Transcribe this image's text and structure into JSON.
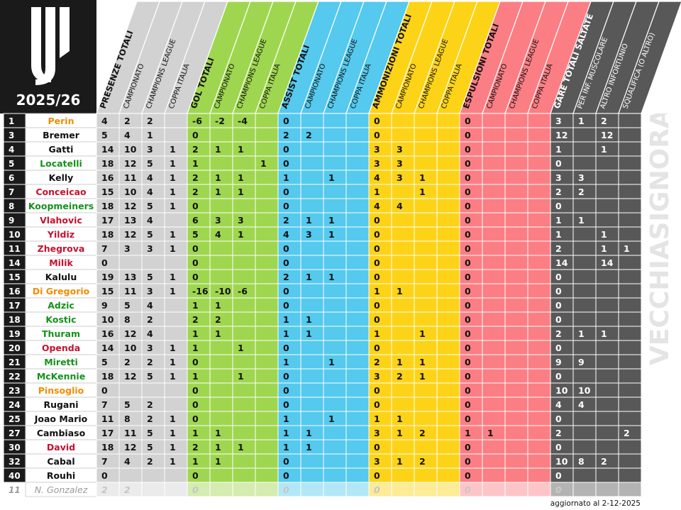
{
  "season": "2025/26",
  "watermark": "VECCHIASIGNORA.COM",
  "updated_note": "aggiornato al 2-12-2025",
  "colors": {
    "presenze": "#d2d2d2",
    "gol": "#9fd64f",
    "assist": "#55c9ee",
    "ammonizioni": "#fdd317",
    "espulsioni": "#fb7e84",
    "gare": "#585858",
    "header_black": "#1a1a1a",
    "name_black": "#111111",
    "name_orange": "#f28c00",
    "name_green": "#15911b",
    "name_red": "#c8102e",
    "name_grey": "#9a9a9a"
  },
  "columns": [
    {
      "key": "pres_tot",
      "label": "PRESENZE TOTALI",
      "group": "presenze",
      "main": true
    },
    {
      "key": "pres_camp",
      "label": "CAMPIONATO",
      "group": "presenze",
      "main": false
    },
    {
      "key": "pres_cl",
      "label": "CHAMPIONS LEAGUE",
      "group": "presenze",
      "main": false
    },
    {
      "key": "pres_ci",
      "label": "COPPA ITALIA",
      "group": "presenze",
      "main": false
    },
    {
      "key": "gol_tot",
      "label": "GOL TOTALI",
      "group": "gol",
      "main": true
    },
    {
      "key": "gol_camp",
      "label": "CAMPIONATO",
      "group": "gol",
      "main": false
    },
    {
      "key": "gol_cl",
      "label": "CHAMPIONS LEAGUE",
      "group": "gol",
      "main": false
    },
    {
      "key": "gol_ci",
      "label": "COPPA ITALIA",
      "group": "gol",
      "main": false
    },
    {
      "key": "ast_tot",
      "label": "ASSIST TOTALI",
      "group": "assist",
      "main": true
    },
    {
      "key": "ast_camp",
      "label": "CAMPIONATO",
      "group": "assist",
      "main": false
    },
    {
      "key": "ast_cl",
      "label": "CHAMPIONS LEAGUE",
      "group": "assist",
      "main": false
    },
    {
      "key": "ast_ci",
      "label": "COPPA ITALIA",
      "group": "assist",
      "main": false
    },
    {
      "key": "amm_tot",
      "label": "AMMONIZIONI TOTALI",
      "group": "ammonizioni",
      "main": true
    },
    {
      "key": "amm_camp",
      "label": "CAMPIONATO",
      "group": "ammonizioni",
      "main": false
    },
    {
      "key": "amm_cl",
      "label": "CHAMPIONS LEAGUE",
      "group": "ammonizioni",
      "main": false
    },
    {
      "key": "amm_ci",
      "label": "COPPA ITALIA",
      "group": "ammonizioni",
      "main": false
    },
    {
      "key": "esp_tot",
      "label": "ESPULSIONI TOTALI",
      "group": "espulsioni",
      "main": true
    },
    {
      "key": "esp_camp",
      "label": "CAMPIONATO",
      "group": "espulsioni",
      "main": false
    },
    {
      "key": "esp_cl",
      "label": "CHAMPIONS LEAGUE",
      "group": "espulsioni",
      "main": false
    },
    {
      "key": "esp_ci",
      "label": "COPPA ITALIA",
      "group": "espulsioni",
      "main": false
    },
    {
      "key": "gare_tot",
      "label": "GARE TOTALI SALTATE",
      "group": "gare",
      "main": true
    },
    {
      "key": "gare_mus",
      "label": "PER INF. MUSCOLARE",
      "group": "gare",
      "main": false
    },
    {
      "key": "gare_alt",
      "label": "ALTRO INFORTUNIO",
      "group": "gare",
      "main": false
    },
    {
      "key": "gare_squ",
      "label": "SQUALIFICA (O ALTRO)",
      "group": "gare",
      "main": false
    }
  ],
  "chart_data": {
    "type": "table",
    "title": "2025/26",
    "row_headers": [
      "#",
      "player"
    ],
    "rows": [
      {
        "num": "1",
        "name": "Perin",
        "name_color": "orange",
        "v": [
          "4",
          "2",
          "2",
          "",
          "-6",
          "-2",
          "-4",
          "",
          "0",
          "",
          "",
          "",
          "0",
          "",
          "",
          "",
          "0",
          "",
          "",
          "",
          "3",
          "1",
          "2",
          ""
        ]
      },
      {
        "num": "3",
        "name": "Bremer",
        "name_color": "black",
        "v": [
          "5",
          "4",
          "1",
          "",
          "0",
          "",
          "",
          "",
          "2",
          "2",
          "",
          "",
          "0",
          "",
          "",
          "",
          "0",
          "",
          "",
          "",
          "12",
          "",
          "12",
          ""
        ]
      },
      {
        "num": "4",
        "name": "Gatti",
        "name_color": "black",
        "v": [
          "14",
          "10",
          "3",
          "1",
          "2",
          "1",
          "1",
          "",
          "0",
          "",
          "",
          "",
          "3",
          "3",
          "",
          "",
          "0",
          "",
          "",
          "",
          "1",
          "",
          "1",
          ""
        ]
      },
      {
        "num": "5",
        "name": "Locatelli",
        "name_color": "green",
        "v": [
          "18",
          "12",
          "5",
          "1",
          "1",
          "",
          "",
          "1",
          "0",
          "",
          "",
          "",
          "3",
          "3",
          "",
          "",
          "0",
          "",
          "",
          "",
          "0",
          "",
          "",
          ""
        ]
      },
      {
        "num": "6",
        "name": "Kelly",
        "name_color": "black",
        "v": [
          "16",
          "11",
          "4",
          "1",
          "2",
          "1",
          "1",
          "",
          "1",
          "",
          "1",
          "",
          "4",
          "3",
          "1",
          "",
          "0",
          "",
          "",
          "",
          "3",
          "3",
          "",
          ""
        ]
      },
      {
        "num": "7",
        "name": "Conceicao",
        "name_color": "red",
        "v": [
          "15",
          "10",
          "4",
          "1",
          "2",
          "1",
          "1",
          "",
          "0",
          "",
          "",
          "",
          "1",
          "",
          "1",
          "",
          "0",
          "",
          "",
          "",
          "2",
          "2",
          "",
          ""
        ]
      },
      {
        "num": "8",
        "name": "Koopmeiners",
        "name_color": "green",
        "v": [
          "18",
          "12",
          "5",
          "1",
          "0",
          "",
          "",
          "",
          "0",
          "",
          "",
          "",
          "4",
          "4",
          "",
          "",
          "0",
          "",
          "",
          "",
          "0",
          "",
          "",
          ""
        ]
      },
      {
        "num": "9",
        "name": "Vlahovic",
        "name_color": "red",
        "v": [
          "17",
          "13",
          "4",
          "",
          "6",
          "3",
          "3",
          "",
          "2",
          "1",
          "1",
          "",
          "0",
          "",
          "",
          "",
          "0",
          "",
          "",
          "",
          "1",
          "1",
          "",
          ""
        ]
      },
      {
        "num": "10",
        "name": "Yildiz",
        "name_color": "red",
        "v": [
          "18",
          "12",
          "5",
          "1",
          "5",
          "4",
          "1",
          "",
          "4",
          "3",
          "1",
          "",
          "0",
          "",
          "",
          "",
          "0",
          "",
          "",
          "",
          "1",
          "",
          "1",
          ""
        ]
      },
      {
        "num": "11",
        "name": "Zhegrova",
        "name_color": "red",
        "v": [
          "7",
          "3",
          "3",
          "1",
          "0",
          "",
          "",
          "",
          "0",
          "",
          "",
          "",
          "0",
          "",
          "",
          "",
          "0",
          "",
          "",
          "",
          "2",
          "",
          "1",
          "1"
        ]
      },
      {
        "num": "14",
        "name": "Milik",
        "name_color": "red",
        "v": [
          "0",
          "",
          "",
          "",
          "0",
          "",
          "",
          "",
          "0",
          "",
          "",
          "",
          "0",
          "",
          "",
          "",
          "0",
          "",
          "",
          "",
          "14",
          "",
          "14",
          ""
        ]
      },
      {
        "num": "15",
        "name": "Kalulu",
        "name_color": "black",
        "v": [
          "19",
          "13",
          "5",
          "1",
          "0",
          "",
          "",
          "",
          "2",
          "1",
          "1",
          "",
          "0",
          "",
          "",
          "",
          "0",
          "",
          "",
          "",
          "0",
          "",
          "",
          ""
        ]
      },
      {
        "num": "16",
        "name": "Di Gregorio",
        "name_color": "orange",
        "v": [
          "15",
          "11",
          "3",
          "1",
          "-16",
          "-10",
          "-6",
          "",
          "0",
          "",
          "",
          "",
          "1",
          "1",
          "",
          "",
          "0",
          "",
          "",
          "",
          "0",
          "",
          "",
          ""
        ]
      },
      {
        "num": "17",
        "name": "Adzic",
        "name_color": "green",
        "v": [
          "9",
          "5",
          "4",
          "",
          "1",
          "1",
          "",
          "",
          "0",
          "",
          "",
          "",
          "0",
          "",
          "",
          "",
          "0",
          "",
          "",
          "",
          "0",
          "",
          "",
          ""
        ]
      },
      {
        "num": "18",
        "name": "Kostic",
        "name_color": "green",
        "v": [
          "10",
          "8",
          "2",
          "",
          "2",
          "2",
          "",
          "",
          "1",
          "1",
          "",
          "",
          "0",
          "",
          "",
          "",
          "0",
          "",
          "",
          "",
          "0",
          "",
          "",
          ""
        ]
      },
      {
        "num": "19",
        "name": "Thuram",
        "name_color": "green",
        "v": [
          "16",
          "12",
          "4",
          "",
          "1",
          "1",
          "",
          "",
          "1",
          "1",
          "",
          "",
          "1",
          "",
          "1",
          "",
          "0",
          "",
          "",
          "",
          "2",
          "1",
          "1",
          ""
        ]
      },
      {
        "num": "20",
        "name": "Openda",
        "name_color": "red",
        "v": [
          "14",
          "10",
          "3",
          "1",
          "1",
          "",
          "1",
          "",
          "0",
          "",
          "",
          "",
          "0",
          "",
          "",
          "",
          "0",
          "",
          "",
          "",
          "0",
          "",
          "",
          ""
        ]
      },
      {
        "num": "21",
        "name": "Miretti",
        "name_color": "green",
        "v": [
          "5",
          "2",
          "2",
          "1",
          "0",
          "",
          "",
          "",
          "1",
          "",
          "1",
          "",
          "2",
          "1",
          "1",
          "",
          "0",
          "",
          "",
          "",
          "9",
          "9",
          "",
          ""
        ]
      },
      {
        "num": "22",
        "name": "McKennie",
        "name_color": "green",
        "v": [
          "18",
          "12",
          "5",
          "1",
          "1",
          "",
          "1",
          "",
          "0",
          "",
          "",
          "",
          "3",
          "2",
          "1",
          "",
          "0",
          "",
          "",
          "",
          "0",
          "",
          "",
          ""
        ]
      },
      {
        "num": "23",
        "name": "Pinsoglio",
        "name_color": "orange",
        "v": [
          "0",
          "",
          "",
          "",
          "0",
          "",
          "",
          "",
          "0",
          "",
          "",
          "",
          "0",
          "",
          "",
          "",
          "0",
          "",
          "",
          "",
          "10",
          "10",
          "",
          ""
        ]
      },
      {
        "num": "24",
        "name": "Rugani",
        "name_color": "black",
        "v": [
          "7",
          "5",
          "2",
          "",
          "0",
          "",
          "",
          "",
          "0",
          "",
          "",
          "",
          "0",
          "",
          "",
          "",
          "0",
          "",
          "",
          "",
          "4",
          "4",
          "",
          ""
        ]
      },
      {
        "num": "25",
        "name": "Joao Mario",
        "name_color": "black",
        "v": [
          "11",
          "8",
          "2",
          "1",
          "0",
          "",
          "",
          "",
          "1",
          "",
          "1",
          "",
          "1",
          "1",
          "",
          "",
          "0",
          "",
          "",
          "",
          "0",
          "",
          "",
          ""
        ]
      },
      {
        "num": "27",
        "name": "Cambiaso",
        "name_color": "black",
        "v": [
          "17",
          "11",
          "5",
          "1",
          "1",
          "1",
          "",
          "",
          "1",
          "1",
          "",
          "",
          "3",
          "1",
          "2",
          "",
          "1",
          "1",
          "",
          "",
          "2",
          "",
          "",
          "2"
        ]
      },
      {
        "num": "30",
        "name": "David",
        "name_color": "red",
        "v": [
          "18",
          "12",
          "5",
          "1",
          "2",
          "1",
          "1",
          "",
          "1",
          "1",
          "",
          "",
          "0",
          "",
          "",
          "",
          "0",
          "",
          "",
          "",
          "0",
          "",
          "",
          ""
        ]
      },
      {
        "num": "32",
        "name": "Cabal",
        "name_color": "black",
        "v": [
          "7",
          "4",
          "2",
          "1",
          "1",
          "1",
          "",
          "",
          "0",
          "",
          "",
          "",
          "3",
          "1",
          "2",
          "",
          "0",
          "",
          "",
          "",
          "10",
          "8",
          "2",
          ""
        ]
      },
      {
        "num": "40",
        "name": "Rouhi",
        "name_color": "black",
        "v": [
          "0",
          "",
          "",
          "",
          "0",
          "",
          "",
          "",
          "0",
          "",
          "",
          "",
          "0",
          "",
          "",
          "",
          "0",
          "",
          "",
          "",
          "0",
          "",
          "",
          ""
        ]
      },
      {
        "num": "11",
        "name": "N. Gonzalez",
        "name_color": "grey",
        "faded": true,
        "v": [
          "2",
          "2",
          "",
          "",
          "0",
          "",
          "",
          "",
          "0",
          "",
          "",
          "",
          "0",
          "",
          "",
          "",
          "0",
          "",
          "",
          "",
          "0",
          "",
          "",
          ""
        ]
      }
    ]
  }
}
